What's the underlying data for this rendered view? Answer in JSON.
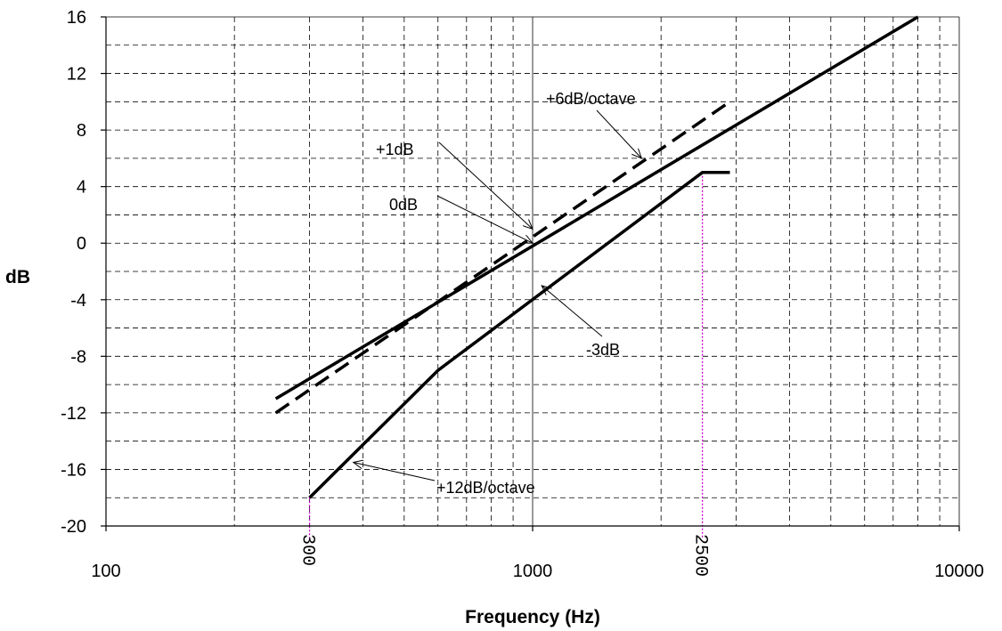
{
  "chart_data": {
    "type": "line",
    "title": "",
    "xlabel": "Frequency (Hz)",
    "ylabel": "dB",
    "x_scale": "log",
    "xlim": [
      100,
      10000
    ],
    "ylim": [
      -20,
      16
    ],
    "x_ticks": [
      "100",
      "1000",
      "10000"
    ],
    "y_ticks": [
      "-20",
      "-16",
      "-12",
      "-8",
      "-4",
      "0",
      "4",
      "8",
      "12",
      "16"
    ],
    "grid": true,
    "legend": "none",
    "series": [
      {
        "style": "solid",
        "x": [
          250,
          8000
        ],
        "y": [
          -11,
          16
        ]
      },
      {
        "style": "dashed",
        "x": [
          250,
          2900
        ],
        "y": [
          -12,
          10
        ]
      },
      {
        "style": "solid",
        "x": [
          300,
          600,
          2500,
          2900
        ],
        "y": [
          -18,
          -9,
          5,
          5
        ]
      }
    ],
    "vertical_markers": [
      {
        "x": 300,
        "label": "300",
        "color": "#cc00cc"
      },
      {
        "x": 2500,
        "label": "2500",
        "color": "#cc00cc"
      }
    ],
    "annotations": [
      {
        "text": "+6dB/octave",
        "target": [
          1800,
          6
        ]
      },
      {
        "text": "+1dB",
        "target": [
          1000,
          1
        ]
      },
      {
        "text": "0dB",
        "target": [
          1000,
          0
        ]
      },
      {
        "text": "-3dB",
        "target": [
          1050,
          -3
        ]
      },
      {
        "text": "+12dB/octave",
        "target": [
          380,
          -15.5
        ]
      }
    ]
  }
}
